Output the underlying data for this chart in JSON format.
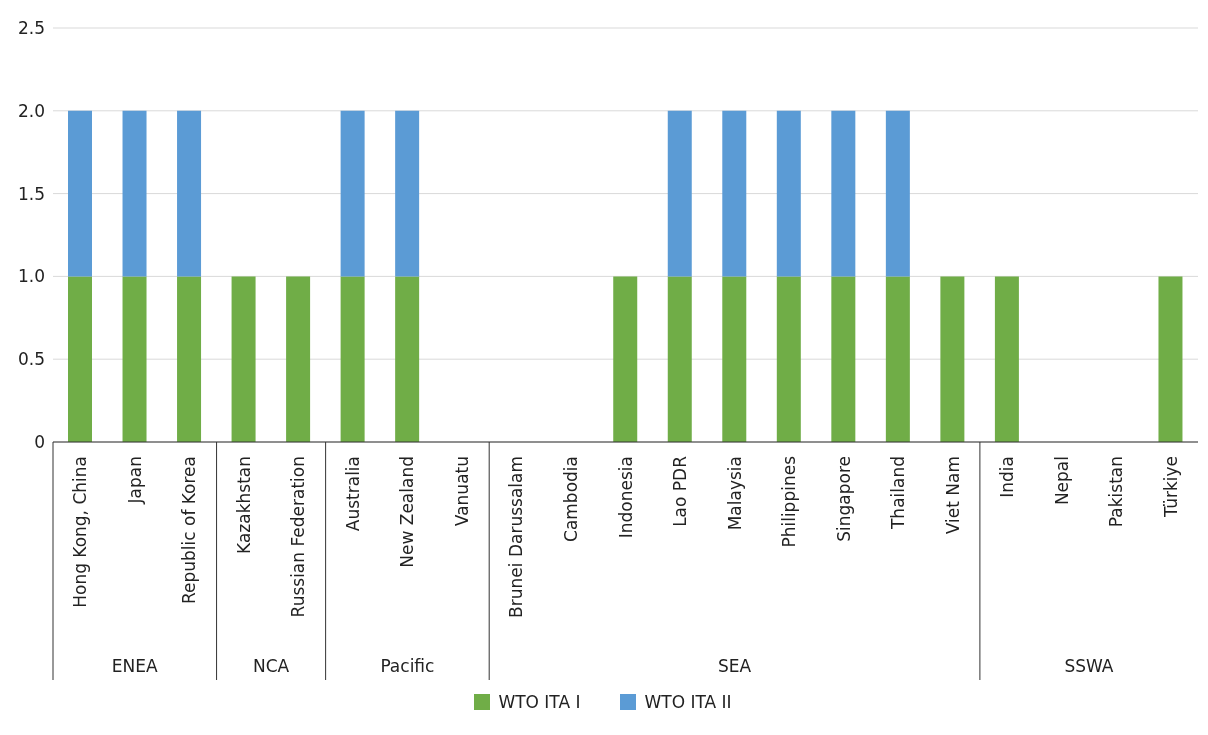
{
  "chart_data": {
    "type": "bar",
    "stacked": true,
    "categories": [
      "Hong Kong, China",
      "Japan",
      "Republic of Korea",
      "Kazakhstan",
      "Russian Federation",
      "Australia",
      "New Zealand",
      "Vanuatu",
      "Brunei Darussalam",
      "Cambodia",
      "Indonesia",
      "Lao PDR",
      "Malaysia",
      "Philippines",
      "Singapore",
      "Thailand",
      "Viet Nam",
      "India",
      "Nepal",
      "Pakistan",
      "Türkiye"
    ],
    "series": [
      {
        "name": "WTO ITA I",
        "color": "#70ad47",
        "values": [
          1,
          1,
          1,
          1,
          1,
          1,
          1,
          0,
          0,
          0,
          1,
          1,
          1,
          1,
          1,
          1,
          1,
          1,
          0,
          0,
          1
        ]
      },
      {
        "name": "WTO ITA II",
        "color": "#5b9bd5",
        "values": [
          1,
          1,
          1,
          0,
          0,
          1,
          1,
          0,
          0,
          0,
          0,
          1,
          1,
          1,
          1,
          1,
          0,
          0,
          0,
          0,
          0
        ]
      }
    ],
    "ylim": [
      0,
      2.5
    ],
    "yticks": [
      0,
      {
        "value": 0.5,
        "label": "0.5"
      },
      {
        "value": 1,
        "label": "1.0"
      },
      {
        "value": 1.5,
        "label": "1.5"
      },
      {
        "value": 2,
        "label": "2.0"
      },
      {
        "value": 2.5,
        "label": "2.5"
      }
    ],
    "grid": "y",
    "legend": "bottom",
    "annotations": [
      "ENEA",
      "NCA",
      "Pacific",
      "SEA",
      "SSWA"
    ]
  }
}
